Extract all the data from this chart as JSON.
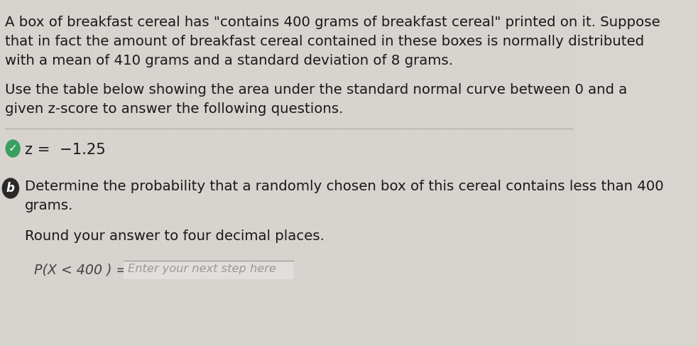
{
  "bg_color": "#d8d4cf",
  "text_color": "#1a1a1a",
  "green_circle_color": "#3a9e5f",
  "dark_circle_color": "#2a2a2a",
  "input_box_color": "#e8e5e0",
  "input_border_color": "#bbbbbb",
  "section_bg": "#d8d4cf",
  "paragraph1_lines": [
    "A box of breakfast cereal has \"contains 400 grams of breakfast cereal\" printed on it. Suppose",
    "that in fact the amount of breakfast cereal contained in these boxes is normally distributed",
    "with a mean of 410 grams and a standard deviation of 8 grams."
  ],
  "paragraph2_lines": [
    "Use the table below showing the area under the standard normal curve between 0 and a",
    "given z-score to answer the following questions."
  ],
  "z_score_text": "z =  −1.25",
  "section_b_label": "b",
  "question_line1": "Determine the probability that a randomly chosen box of this cereal contains less than 400",
  "question_line2": "grams.",
  "round_text": "Round your answer to four decimal places.",
  "equation_text": "P(X < 400 ) =",
  "placeholder_text": "Enter your next step here",
  "figsize": [
    9.83,
    4.87
  ],
  "dpi": 100
}
